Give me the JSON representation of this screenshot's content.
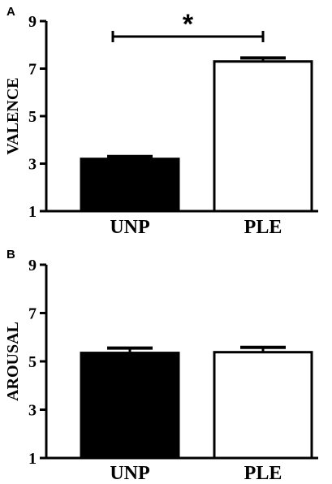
{
  "chart_data": [
    {
      "type": "bar",
      "panel": "A",
      "title": "",
      "xlabel": "",
      "ylabel": "VALENCE",
      "categories": [
        "UNP",
        "PLE"
      ],
      "values": [
        3.2,
        7.3
      ],
      "errors": [
        0.1,
        0.15
      ],
      "ylim": [
        1,
        9
      ],
      "yticks": [
        "1",
        "3",
        "5",
        "7",
        "9"
      ],
      "bar_fill": [
        "#000000",
        "#ffffff"
      ],
      "grid": false,
      "legend": "none",
      "significance": {
        "between": [
          "UNP",
          "PLE"
        ],
        "label": "*"
      }
    },
    {
      "type": "bar",
      "panel": "B",
      "title": "",
      "xlabel": "",
      "ylabel": "AROUSAL",
      "categories": [
        "UNP",
        "PLE"
      ],
      "values": [
        5.35,
        5.38
      ],
      "errors": [
        0.2,
        0.2
      ],
      "ylim": [
        1,
        9
      ],
      "yticks": [
        "1",
        "3",
        "5",
        "7",
        "9"
      ],
      "bar_fill": [
        "#000000",
        "#ffffff"
      ],
      "grid": false,
      "legend": "none"
    }
  ]
}
